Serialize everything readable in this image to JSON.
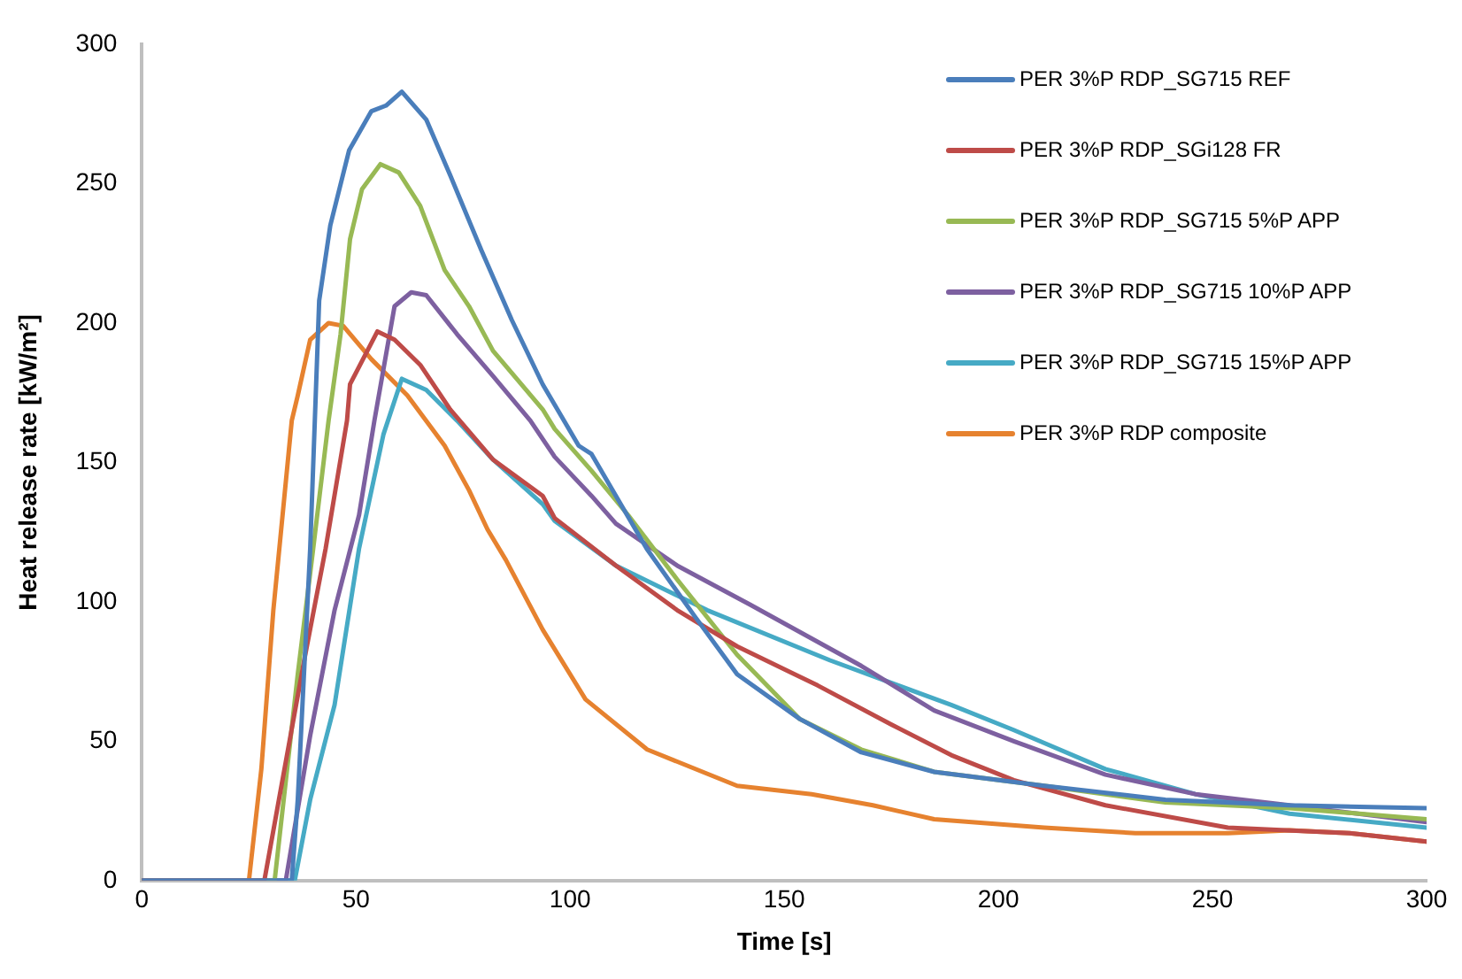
{
  "chart_data": {
    "type": "line",
    "xlabel": "Time [s]",
    "ylabel": "Heat release rate [kW/m²]",
    "xlim": [
      0,
      300
    ],
    "xticks": [
      0,
      50,
      100,
      150,
      200,
      250,
      300
    ],
    "ylim": [
      0,
      300
    ],
    "yticks": [
      0,
      50,
      100,
      150,
      200,
      250,
      300
    ],
    "grid": false,
    "legend": "top right",
    "marker": "none",
    "line_style": "solid",
    "series": [
      {
        "name": "PER 3%P RDP_SG715 REF",
        "color": "#4a7ebb",
        "x": [
          0,
          35,
          36.4,
          39.3,
          41.4,
          44,
          48.4,
          53.6,
          57,
          60.7,
          66.4,
          72,
          79.3,
          86.4,
          93.6,
          102,
          105,
          117.9,
          129,
          139,
          153.6,
          168,
          185,
          210.7,
          239,
          268,
          300
        ],
        "values": [
          0,
          0,
          29,
          119,
          208,
          235,
          262,
          276,
          278,
          283,
          273,
          253,
          226,
          201,
          178,
          156,
          153,
          119,
          95,
          74,
          58,
          46,
          39,
          34,
          29,
          27,
          26
        ]
      },
      {
        "name": "PER 3%P RDP_SGi128 FR",
        "color": "#be4b48",
        "x": [
          0,
          28.6,
          32,
          37.9,
          42.9,
          47.9,
          48.6,
          55,
          59,
          65,
          72,
          82,
          93.6,
          96.4,
          110.7,
          125,
          139,
          157.8,
          175,
          189,
          203.6,
          225,
          253.6,
          282,
          300
        ],
        "values": [
          0,
          0,
          29,
          79,
          119,
          165,
          178,
          197,
          194,
          185,
          169,
          151,
          138,
          130,
          113,
          97,
          84,
          70,
          56,
          45,
          36,
          27,
          19,
          17,
          14
        ]
      },
      {
        "name": "PER 3%P RDP_SG715 5%P APP",
        "color": "#98b954",
        "x": [
          0,
          31,
          36.4,
          40,
          43.6,
          46.4,
          48.6,
          51.4,
          55.7,
          60,
          65,
          70.7,
          76.4,
          82,
          93.6,
          96.4,
          105,
          113.6,
          125,
          139,
          153.6,
          168,
          185,
          210.7,
          239,
          268,
          300
        ],
        "values": [
          0,
          0,
          74,
          119,
          165,
          196,
          230,
          248,
          257,
          254,
          242,
          219,
          206,
          190,
          169,
          162,
          147,
          131,
          108,
          81,
          58,
          47,
          39,
          34,
          28,
          26,
          22
        ]
      },
      {
        "name": "PER 3%P RDP_SG715 10%P APP",
        "color": "#7d60a0",
        "x": [
          0,
          33.6,
          39.3,
          45,
          50.7,
          54.3,
          59,
          62.9,
          66.4,
          73.6,
          82,
          90.7,
          96.4,
          105,
          110.7,
          125,
          142,
          168,
          185,
          203.6,
          225,
          246,
          268,
          300
        ],
        "values": [
          0,
          0,
          52,
          97,
          131,
          165,
          206,
          211,
          210,
          196,
          181,
          165,
          152,
          138,
          128,
          113,
          99,
          77,
          61,
          50,
          38,
          31,
          27,
          21
        ]
      },
      {
        "name": "PER 3%P RDP_SG715 15%P APP",
        "color": "#46aac5",
        "x": [
          0,
          35.7,
          39.3,
          45,
          50.7,
          56.4,
          60.7,
          66.4,
          73.6,
          82,
          93.6,
          96.4,
          110.7,
          132,
          160.7,
          189,
          203.6,
          225,
          246,
          268,
          300
        ],
        "values": [
          0,
          0,
          29,
          63,
          119,
          160,
          180,
          176,
          165,
          151,
          135,
          129,
          113,
          97,
          79,
          63,
          54,
          40,
          31,
          24,
          19
        ]
      },
      {
        "name": "PER 3%P RDP composite",
        "color": "#e6822f",
        "x": [
          0,
          25,
          27.9,
          30.7,
          35,
          36.4,
          39.3,
          43.6,
          47,
          53.6,
          62,
          70.7,
          76.4,
          80.7,
          85,
          93.6,
          103.6,
          118,
          139,
          156.4,
          170.7,
          185,
          210.7,
          232,
          253.6,
          268,
          282,
          300
        ],
        "values": [
          0,
          0,
          40,
          97,
          165,
          174,
          194,
          200,
          199,
          187,
          174,
          156,
          140,
          126,
          115,
          90,
          65,
          47,
          34,
          31,
          27,
          22,
          19,
          17,
          17,
          18,
          17,
          14
        ]
      }
    ]
  }
}
